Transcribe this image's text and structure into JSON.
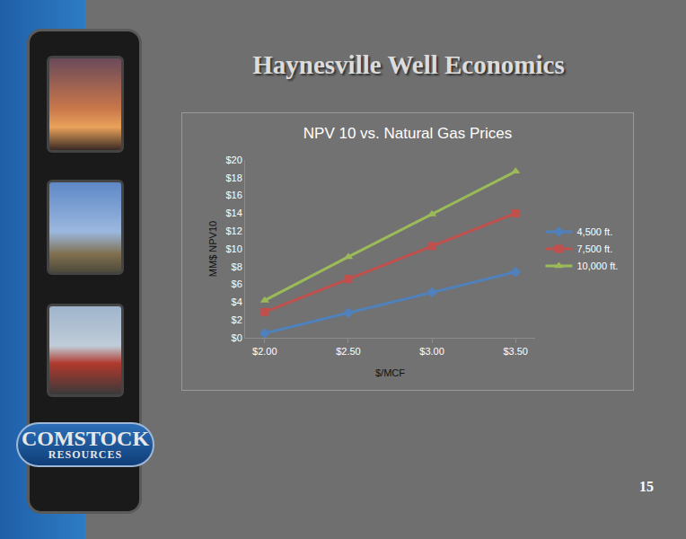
{
  "page": {
    "title": "Haynesville Well Economics",
    "page_number": "15",
    "logo": [
      "COMSTOCK",
      "RESOURCES"
    ]
  },
  "chart_data": {
    "type": "line",
    "title": "NPV 10 vs. Natural Gas Prices",
    "x_label": "$/MCF",
    "y_label": "MM$ NPV10",
    "categories": [
      "$2.00",
      "$2.50",
      "$3.00",
      "$3.50"
    ],
    "series": [
      {
        "name": "4,500 ft.",
        "color": "#4f81bd",
        "marker": "diamond",
        "values": [
          0.5,
          2.8,
          5.1,
          7.4
        ]
      },
      {
        "name": "7,500 ft.",
        "color": "#c0504d",
        "marker": "square",
        "values": [
          2.9,
          6.6,
          10.3,
          14.0
        ]
      },
      {
        "name": "10,000 ft.",
        "color": "#9bbb59",
        "marker": "triangle-up",
        "values": [
          4.2,
          9.1,
          13.9,
          18.7
        ]
      }
    ],
    "ylim": [
      0,
      20
    ],
    "yticks": [
      {
        "value": 0,
        "label": "$0"
      },
      {
        "value": 2,
        "label": "$2"
      },
      {
        "value": 4,
        "label": "$4"
      },
      {
        "value": 6,
        "label": "$6"
      },
      {
        "value": 8,
        "label": "$8"
      },
      {
        "value": 10,
        "label": "$10"
      },
      {
        "value": 12,
        "label": "$12"
      },
      {
        "value": 14,
        "label": "$14"
      },
      {
        "value": 16,
        "label": "$16"
      },
      {
        "value": 18,
        "label": "$18"
      },
      {
        "value": 20,
        "label": "$20"
      }
    ],
    "grid": false,
    "legend": "right"
  }
}
